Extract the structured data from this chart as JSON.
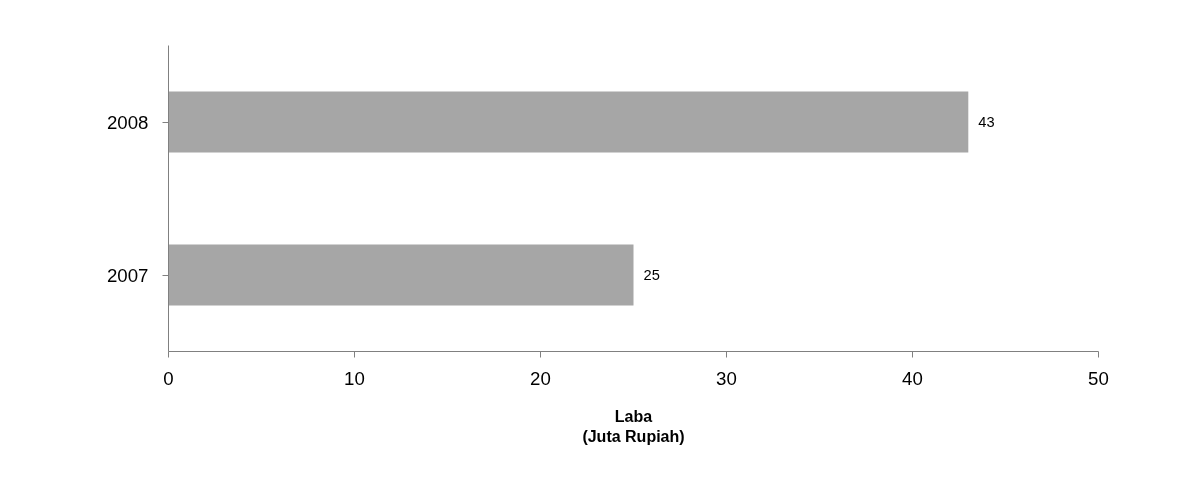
{
  "chart_data": {
    "type": "bar",
    "orientation": "horizontal",
    "categories": [
      "2008",
      "2007"
    ],
    "values": [
      43,
      25
    ],
    "color": "#a6a6a6",
    "data_labels": true,
    "xlabel": "Laba\n(Juta Rupiah)",
    "xlim": [
      0,
      50
    ],
    "xticks": [
      0,
      10,
      20,
      30,
      40,
      50
    ],
    "grid": false
  }
}
